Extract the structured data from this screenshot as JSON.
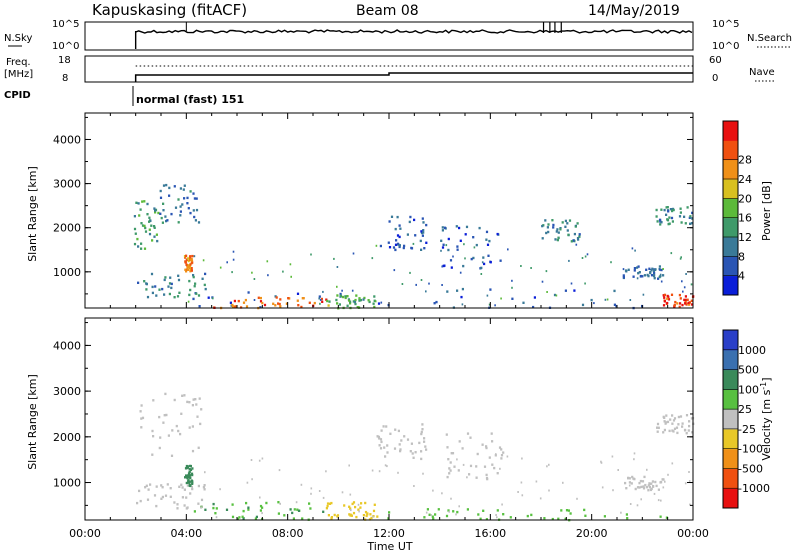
{
  "header": {
    "station": "Kapuskasing (fitACF)",
    "beam": "Beam 08",
    "date": "14/May/2019"
  },
  "nsky_panel": {
    "left_label": "N.Sky",
    "left_ticks": [
      "10^5",
      "10^0"
    ],
    "right_label": "N.Search",
    "right_ticks": [
      "10^5",
      "10^0"
    ]
  },
  "freq_panel": {
    "left_label_1": "Freq.",
    "left_label_2": "[MHz]",
    "left_ticks": [
      "18",
      "8"
    ],
    "right_label": "Nave",
    "right_ticks": [
      "60",
      "0"
    ]
  },
  "cpid": {
    "label": "CPID",
    "mode_text": "normal (fast) 151"
  },
  "colors": {
    "power_scale": [
      "#0a1ed8",
      "#2a55b4",
      "#3a7a98",
      "#3f9a6a",
      "#5cba3a",
      "#d8c020",
      "#f09018",
      "#f05010",
      "#e81010"
    ],
    "velocity_scale": [
      "#2a3fc8",
      "#3a70b0",
      "#3a8a5a",
      "#58c040",
      "#c0c0c0",
      "#e8c828",
      "#f09018",
      "#f05010",
      "#e81010"
    ]
  },
  "chart_data": [
    {
      "type": "heatmap",
      "title": "",
      "xlabel": "",
      "ylabel": "Slant Range [km]",
      "xlim": [
        "00:00",
        "24:00"
      ],
      "ylim": [
        180,
        4600
      ],
      "x_ticks": [
        "00:00",
        "04:00",
        "08:00",
        "12:00",
        "16:00",
        "20:00",
        "00:00"
      ],
      "y_ticks": [
        "1000",
        "2000",
        "3000",
        "4000"
      ],
      "colorbar_label": "Power [dB]",
      "colorbar_ticks": [
        "4",
        "8",
        "12",
        "16",
        "20",
        "24",
        "28"
      ],
      "colorbar_range": [
        0,
        32
      ],
      "echo_regions": [
        {
          "t0": 1.9,
          "t1": 2.9,
          "r0": 1500,
          "r1": 2700,
          "value": 12
        },
        {
          "t0": 2.9,
          "t1": 4.6,
          "r0": 2100,
          "r1": 3000,
          "value": 8
        },
        {
          "t0": 2.0,
          "t1": 4.8,
          "r0": 450,
          "r1": 1000,
          "value": 10
        },
        {
          "t0": 3.9,
          "t1": 4.2,
          "r0": 950,
          "r1": 1400,
          "value": 24
        },
        {
          "t0": 4.2,
          "t1": 24.0,
          "r0": 200,
          "r1": 650,
          "value": 6
        },
        {
          "t0": 5.0,
          "t1": 9.5,
          "r0": 200,
          "r1": 450,
          "value": 26
        },
        {
          "t0": 9.5,
          "t1": 11.5,
          "r0": 200,
          "r1": 500,
          "value": 14
        },
        {
          "t0": 11.5,
          "t1": 13.5,
          "r0": 1500,
          "r1": 2300,
          "value": 6
        },
        {
          "t0": 14.0,
          "t1": 16.5,
          "r0": 1100,
          "r1": 2100,
          "value": 6
        },
        {
          "t0": 18.0,
          "t1": 19.5,
          "r0": 1700,
          "r1": 2200,
          "value": 10
        },
        {
          "t0": 21.2,
          "t1": 22.8,
          "r0": 850,
          "r1": 1150,
          "value": 8
        },
        {
          "t0": 22.5,
          "t1": 24.0,
          "r0": 2100,
          "r1": 2500,
          "value": 10
        },
        {
          "t0": 22.8,
          "t1": 24.0,
          "r0": 230,
          "r1": 520,
          "value": 28
        }
      ]
    },
    {
      "type": "heatmap",
      "title": "",
      "xlabel": "Time UT",
      "ylabel": "Slant Range [km]",
      "xlim": [
        "00:00",
        "24:00"
      ],
      "ylim": [
        180,
        4600
      ],
      "x_ticks": [
        "00:00",
        "04:00",
        "08:00",
        "12:00",
        "16:00",
        "20:00",
        "00:00"
      ],
      "y_ticks": [
        "1000",
        "2000",
        "3000",
        "4000"
      ],
      "colorbar_label": "Velocity [m s^-1]",
      "colorbar_ticks": [
        "1000",
        "500",
        "100",
        "25",
        "-25",
        "-100",
        "-500",
        "-1000"
      ],
      "echo_regions": [
        {
          "t0": 1.9,
          "t1": 4.6,
          "r0": 1500,
          "r1": 3000,
          "value": 0
        },
        {
          "t0": 2.0,
          "t1": 4.8,
          "r0": 450,
          "r1": 1000,
          "value": 0
        },
        {
          "t0": 3.9,
          "t1": 4.2,
          "r0": 950,
          "r1": 1400,
          "value": 300
        },
        {
          "t0": 4.2,
          "t1": 9.5,
          "r0": 200,
          "r1": 600,
          "value": 80
        },
        {
          "t0": 9.5,
          "t1": 11.5,
          "r0": 200,
          "r1": 600,
          "value": -60
        },
        {
          "t0": 11.5,
          "t1": 24.0,
          "r0": 200,
          "r1": 450,
          "value": 40
        },
        {
          "t0": 11.5,
          "t1": 13.5,
          "r0": 1500,
          "r1": 2300,
          "value": 0
        },
        {
          "t0": 14.0,
          "t1": 16.5,
          "r0": 1100,
          "r1": 2100,
          "value": 0
        },
        {
          "t0": 21.2,
          "t1": 22.8,
          "r0": 850,
          "r1": 1150,
          "value": 0
        },
        {
          "t0": 22.5,
          "t1": 24.0,
          "r0": 2100,
          "r1": 2500,
          "value": 0
        }
      ]
    }
  ]
}
